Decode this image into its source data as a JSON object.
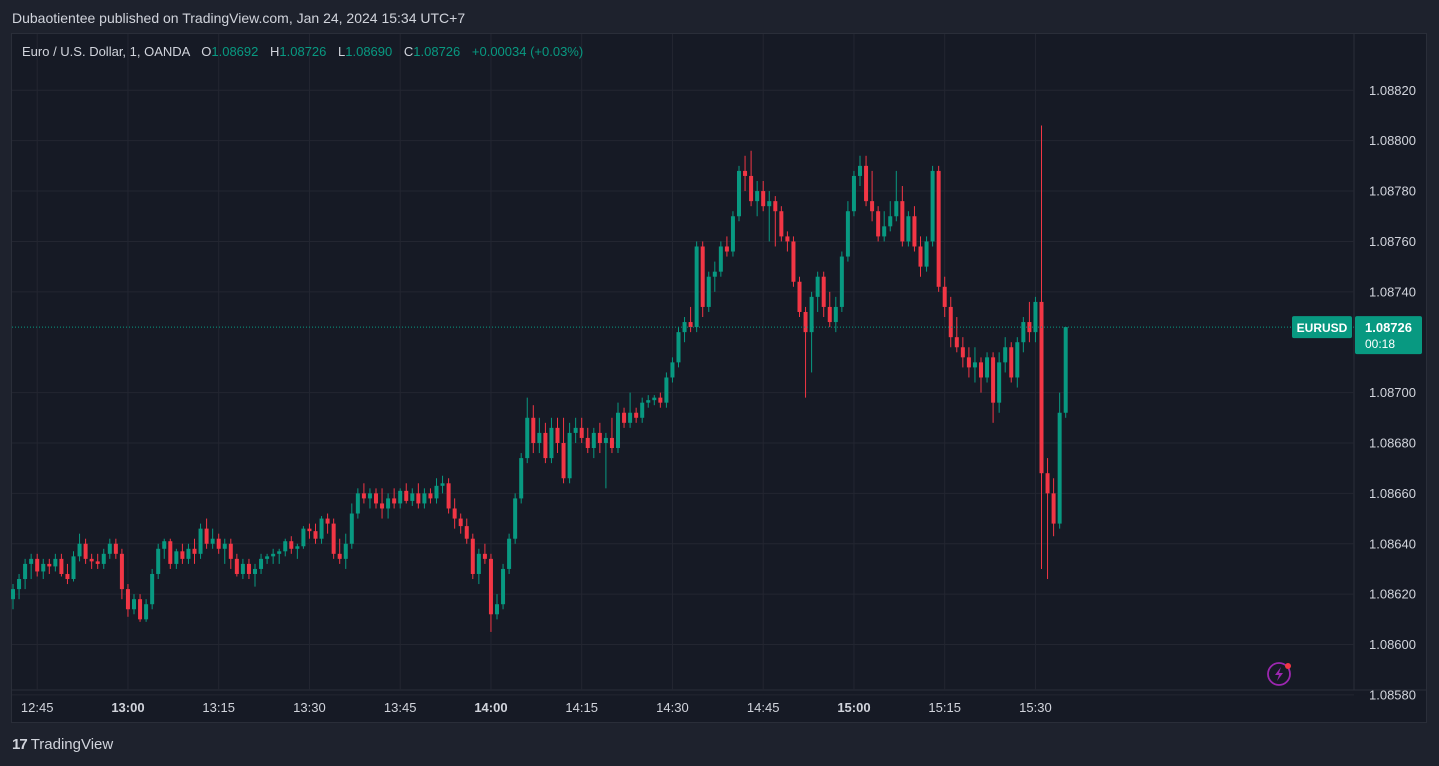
{
  "header": {
    "publisher_line": "Dubaotientee published on TradingView.com, Jan 24, 2024 15:34 UTC+7"
  },
  "legend": {
    "symbol": "Euro / U.S. Dollar, 1, OANDA",
    "open_label": "O",
    "open": "1.08692",
    "high_label": "H",
    "high": "1.08726",
    "low_label": "L",
    "low": "1.08690",
    "close_label": "C",
    "close": "1.08726",
    "change": "+0.00034 (+0.03%)"
  },
  "price_tag": {
    "symbol": "EURUSD",
    "price": "1.08726",
    "countdown": "00:18"
  },
  "footer": {
    "brand_mark": "17",
    "brand": "TradingView"
  },
  "colors": {
    "up": "#089981",
    "down": "#f23645",
    "background": "#161a25",
    "grid": "#232631",
    "text": "#d1d4dc"
  },
  "icons": {
    "alert": "lightning-bolt-icon"
  },
  "chart_data": {
    "type": "candlestick",
    "bar_interval_minutes": 1,
    "x_ticks": [
      {
        "label": "12:45",
        "index": 4,
        "bold": false
      },
      {
        "label": "13:00",
        "index": 19,
        "bold": true
      },
      {
        "label": "13:15",
        "index": 34,
        "bold": false
      },
      {
        "label": "13:30",
        "index": 49,
        "bold": false
      },
      {
        "label": "13:45",
        "index": 64,
        "bold": false
      },
      {
        "label": "14:00",
        "index": 79,
        "bold": true
      },
      {
        "label": "14:15",
        "index": 94,
        "bold": false
      },
      {
        "label": "14:30",
        "index": 109,
        "bold": false
      },
      {
        "label": "14:45",
        "index": 124,
        "bold": false
      },
      {
        "label": "15:00",
        "index": 139,
        "bold": true
      },
      {
        "label": "15:15",
        "index": 154,
        "bold": false
      },
      {
        "label": "15:30",
        "index": 169,
        "bold": false
      }
    ],
    "y_ticks": [
      "1.08820",
      "1.08800",
      "1.08780",
      "1.08760",
      "1.08740",
      "1.08700",
      "1.08680",
      "1.08660",
      "1.08640",
      "1.08620",
      "1.08600",
      "1.08580"
    ],
    "ylim": [
      1.08575,
      1.08835
    ],
    "last_price": 1.08726,
    "grid": true,
    "ohlc": [
      [
        1.08618,
        1.08624,
        1.08614,
        1.08622
      ],
      [
        1.08622,
        1.08628,
        1.08618,
        1.08626
      ],
      [
        1.08626,
        1.08634,
        1.08622,
        1.08632
      ],
      [
        1.08632,
        1.08636,
        1.08626,
        1.08634
      ],
      [
        1.08634,
        1.08636,
        1.08627,
        1.08629
      ],
      [
        1.08629,
        1.08634,
        1.08626,
        1.08632
      ],
      [
        1.08632,
        1.08634,
        1.08628,
        1.08631
      ],
      [
        1.08631,
        1.08636,
        1.08629,
        1.08634
      ],
      [
        1.08634,
        1.08636,
        1.08627,
        1.08628
      ],
      [
        1.08628,
        1.08632,
        1.08624,
        1.08626
      ],
      [
        1.08626,
        1.08637,
        1.08625,
        1.08635
      ],
      [
        1.08635,
        1.08644,
        1.08633,
        1.0864
      ],
      [
        1.0864,
        1.08642,
        1.08632,
        1.08634
      ],
      [
        1.08634,
        1.08636,
        1.0863,
        1.08633
      ],
      [
        1.08633,
        1.08636,
        1.0863,
        1.08632
      ],
      [
        1.08632,
        1.08638,
        1.0863,
        1.08636
      ],
      [
        1.08636,
        1.08642,
        1.08634,
        1.0864
      ],
      [
        1.0864,
        1.08642,
        1.08634,
        1.08636
      ],
      [
        1.08636,
        1.08638,
        1.08618,
        1.08622
      ],
      [
        1.08622,
        1.08624,
        1.08611,
        1.08614
      ],
      [
        1.08614,
        1.0862,
        1.08612,
        1.08618
      ],
      [
        1.08618,
        1.0862,
        1.08609,
        1.0861
      ],
      [
        1.0861,
        1.08618,
        1.08609,
        1.08616
      ],
      [
        1.08616,
        1.0863,
        1.08614,
        1.08628
      ],
      [
        1.08628,
        1.0864,
        1.08626,
        1.08638
      ],
      [
        1.08638,
        1.08642,
        1.08634,
        1.08641
      ],
      [
        1.08641,
        1.08642,
        1.0863,
        1.08632
      ],
      [
        1.08632,
        1.08638,
        1.0863,
        1.08637
      ],
      [
        1.08637,
        1.0864,
        1.08632,
        1.08634
      ],
      [
        1.08634,
        1.0864,
        1.08632,
        1.08638
      ],
      [
        1.08638,
        1.08642,
        1.08632,
        1.08636
      ],
      [
        1.08636,
        1.08648,
        1.08634,
        1.08646
      ],
      [
        1.08646,
        1.0865,
        1.08638,
        1.0864
      ],
      [
        1.0864,
        1.08646,
        1.08638,
        1.08642
      ],
      [
        1.08642,
        1.08644,
        1.08636,
        1.08638
      ],
      [
        1.08638,
        1.08642,
        1.08632,
        1.0864
      ],
      [
        1.0864,
        1.08642,
        1.0863,
        1.08634
      ],
      [
        1.08634,
        1.08636,
        1.08627,
        1.08628
      ],
      [
        1.08628,
        1.08634,
        1.08626,
        1.08632
      ],
      [
        1.08632,
        1.08634,
        1.08626,
        1.08628
      ],
      [
        1.08628,
        1.08632,
        1.08623,
        1.0863
      ],
      [
        1.0863,
        1.08636,
        1.08628,
        1.08634
      ],
      [
        1.08634,
        1.08636,
        1.08632,
        1.08635
      ],
      [
        1.08635,
        1.08638,
        1.08632,
        1.08636
      ],
      [
        1.08636,
        1.08638,
        1.08632,
        1.08637
      ],
      [
        1.08637,
        1.08642,
        1.08635,
        1.08641
      ],
      [
        1.08641,
        1.08643,
        1.08636,
        1.08638
      ],
      [
        1.08638,
        1.0864,
        1.08634,
        1.08639
      ],
      [
        1.08639,
        1.08647,
        1.08638,
        1.08646
      ],
      [
        1.08646,
        1.08648,
        1.08642,
        1.08645
      ],
      [
        1.08645,
        1.08648,
        1.0864,
        1.08642
      ],
      [
        1.08642,
        1.08651,
        1.0864,
        1.0865
      ],
      [
        1.0865,
        1.08652,
        1.08644,
        1.08648
      ],
      [
        1.08648,
        1.0865,
        1.08634,
        1.08636
      ],
      [
        1.08636,
        1.08642,
        1.08632,
        1.08634
      ],
      [
        1.08634,
        1.08644,
        1.0863,
        1.0864
      ],
      [
        1.0864,
        1.08656,
        1.08638,
        1.08652
      ],
      [
        1.08652,
        1.08662,
        1.0865,
        1.0866
      ],
      [
        1.0866,
        1.08664,
        1.08656,
        1.08658
      ],
      [
        1.08658,
        1.08662,
        1.08654,
        1.0866
      ],
      [
        1.0866,
        1.08662,
        1.08654,
        1.08656
      ],
      [
        1.08656,
        1.08662,
        1.0865,
        1.08654
      ],
      [
        1.08654,
        1.0866,
        1.0865,
        1.08658
      ],
      [
        1.08658,
        1.08662,
        1.08654,
        1.08656
      ],
      [
        1.08656,
        1.08662,
        1.08654,
        1.08661
      ],
      [
        1.08661,
        1.08664,
        1.08656,
        1.08657
      ],
      [
        1.08657,
        1.08662,
        1.08655,
        1.0866
      ],
      [
        1.0866,
        1.08664,
        1.08654,
        1.08656
      ],
      [
        1.08656,
        1.08662,
        1.08654,
        1.0866
      ],
      [
        1.0866,
        1.08662,
        1.08656,
        1.08658
      ],
      [
        1.08658,
        1.08666,
        1.08656,
        1.08663
      ],
      [
        1.08663,
        1.08667,
        1.0866,
        1.08664
      ],
      [
        1.08664,
        1.08666,
        1.08652,
        1.08654
      ],
      [
        1.08654,
        1.08658,
        1.08646,
        1.0865
      ],
      [
        1.0865,
        1.08652,
        1.08644,
        1.08647
      ],
      [
        1.08647,
        1.0865,
        1.0864,
        1.08642
      ],
      [
        1.08642,
        1.08644,
        1.08626,
        1.08628
      ],
      [
        1.08628,
        1.08638,
        1.08624,
        1.08636
      ],
      [
        1.08636,
        1.0864,
        1.08632,
        1.08634
      ],
      [
        1.08634,
        1.08636,
        1.08605,
        1.08612
      ],
      [
        1.08612,
        1.0862,
        1.0861,
        1.08616
      ],
      [
        1.08616,
        1.08632,
        1.08614,
        1.0863
      ],
      [
        1.0863,
        1.08644,
        1.08628,
        1.08642
      ],
      [
        1.08642,
        1.0866,
        1.0864,
        1.08658
      ],
      [
        1.08658,
        1.08676,
        1.08656,
        1.08674
      ],
      [
        1.08674,
        1.08698,
        1.08672,
        1.0869
      ],
      [
        1.0869,
        1.08695,
        1.08676,
        1.0868
      ],
      [
        1.0868,
        1.0869,
        1.08676,
        1.08684
      ],
      [
        1.08684,
        1.08688,
        1.08672,
        1.08674
      ],
      [
        1.08674,
        1.0869,
        1.08672,
        1.08686
      ],
      [
        1.08686,
        1.0869,
        1.08676,
        1.0868
      ],
      [
        1.0868,
        1.0869,
        1.08664,
        1.08666
      ],
      [
        1.08666,
        1.08688,
        1.08664,
        1.08684
      ],
      [
        1.08684,
        1.0869,
        1.0868,
        1.08686
      ],
      [
        1.08686,
        1.0869,
        1.0868,
        1.08682
      ],
      [
        1.08682,
        1.08686,
        1.08676,
        1.08678
      ],
      [
        1.08678,
        1.08686,
        1.08674,
        1.08684
      ],
      [
        1.08684,
        1.08688,
        1.08676,
        1.0868
      ],
      [
        1.0868,
        1.08684,
        1.08662,
        1.08682
      ],
      [
        1.08682,
        1.0869,
        1.08676,
        1.08678
      ],
      [
        1.08678,
        1.08696,
        1.08676,
        1.08692
      ],
      [
        1.08692,
        1.08694,
        1.08686,
        1.08688
      ],
      [
        1.08688,
        1.087,
        1.08686,
        1.08692
      ],
      [
        1.08692,
        1.08694,
        1.08688,
        1.0869
      ],
      [
        1.0869,
        1.08698,
        1.08688,
        1.08696
      ],
      [
        1.08696,
        1.08699,
        1.08694,
        1.08697
      ],
      [
        1.08697,
        1.08699,
        1.08695,
        1.08698
      ],
      [
        1.08698,
        1.087,
        1.08694,
        1.08696
      ],
      [
        1.08696,
        1.08708,
        1.08694,
        1.08706
      ],
      [
        1.08706,
        1.08714,
        1.08704,
        1.08712
      ],
      [
        1.08712,
        1.08726,
        1.0871,
        1.08724
      ],
      [
        1.08724,
        1.0873,
        1.0872,
        1.08728
      ],
      [
        1.08728,
        1.08734,
        1.08724,
        1.08726
      ],
      [
        1.08726,
        1.0876,
        1.08724,
        1.08758
      ],
      [
        1.08758,
        1.0876,
        1.0873,
        1.08734
      ],
      [
        1.08734,
        1.08748,
        1.08732,
        1.08746
      ],
      [
        1.08746,
        1.08752,
        1.0874,
        1.08748
      ],
      [
        1.08748,
        1.0876,
        1.08746,
        1.08758
      ],
      [
        1.08758,
        1.08762,
        1.08754,
        1.08756
      ],
      [
        1.08756,
        1.08772,
        1.08754,
        1.0877
      ],
      [
        1.0877,
        1.0879,
        1.08768,
        1.08788
      ],
      [
        1.08788,
        1.08794,
        1.0878,
        1.08786
      ],
      [
        1.08786,
        1.08796,
        1.08774,
        1.08776
      ],
      [
        1.08776,
        1.08784,
        1.0877,
        1.0878
      ],
      [
        1.0878,
        1.08784,
        1.08772,
        1.08774
      ],
      [
        1.08774,
        1.0878,
        1.0876,
        1.08776
      ],
      [
        1.08776,
        1.08778,
        1.08758,
        1.08772
      ],
      [
        1.08772,
        1.08774,
        1.0876,
        1.08762
      ],
      [
        1.08762,
        1.08764,
        1.08756,
        1.0876
      ],
      [
        1.0876,
        1.08762,
        1.08742,
        1.08744
      ],
      [
        1.08744,
        1.08746,
        1.0873,
        1.08732
      ],
      [
        1.08732,
        1.08734,
        1.08698,
        1.08724
      ],
      [
        1.08724,
        1.0874,
        1.08708,
        1.08738
      ],
      [
        1.08738,
        1.08748,
        1.08732,
        1.08746
      ],
      [
        1.08746,
        1.08748,
        1.0873,
        1.08734
      ],
      [
        1.08734,
        1.0874,
        1.08726,
        1.08728
      ],
      [
        1.08728,
        1.08738,
        1.08724,
        1.08734
      ],
      [
        1.08734,
        1.08756,
        1.08732,
        1.08754
      ],
      [
        1.08754,
        1.08776,
        1.08752,
        1.08772
      ],
      [
        1.08772,
        1.08788,
        1.0877,
        1.08786
      ],
      [
        1.08786,
        1.08794,
        1.08782,
        1.0879
      ],
      [
        1.0879,
        1.08794,
        1.08774,
        1.08776
      ],
      [
        1.08776,
        1.08788,
        1.08768,
        1.08772
      ],
      [
        1.08772,
        1.08774,
        1.0876,
        1.08762
      ],
      [
        1.08762,
        1.08772,
        1.0876,
        1.08766
      ],
      [
        1.08766,
        1.08776,
        1.08764,
        1.0877
      ],
      [
        1.0877,
        1.08788,
        1.08768,
        1.08776
      ],
      [
        1.08776,
        1.08782,
        1.08758,
        1.0876
      ],
      [
        1.0876,
        1.08772,
        1.08758,
        1.0877
      ],
      [
        1.0877,
        1.08774,
        1.08756,
        1.08758
      ],
      [
        1.08758,
        1.08762,
        1.08746,
        1.0875
      ],
      [
        1.0875,
        1.08762,
        1.08748,
        1.0876
      ],
      [
        1.0876,
        1.0879,
        1.08758,
        1.08788
      ],
      [
        1.08788,
        1.0879,
        1.0874,
        1.08742
      ],
      [
        1.08742,
        1.08746,
        1.0873,
        1.08734
      ],
      [
        1.08734,
        1.08738,
        1.08718,
        1.08722
      ],
      [
        1.08722,
        1.0873,
        1.08716,
        1.08718
      ],
      [
        1.08718,
        1.08722,
        1.0871,
        1.08714
      ],
      [
        1.08714,
        1.08718,
        1.08706,
        1.0871
      ],
      [
        1.0871,
        1.08718,
        1.08704,
        1.08712
      ],
      [
        1.08712,
        1.08714,
        1.087,
        1.08706
      ],
      [
        1.08706,
        1.08716,
        1.08704,
        1.08714
      ],
      [
        1.08714,
        1.08716,
        1.08688,
        1.08696
      ],
      [
        1.08696,
        1.08716,
        1.08692,
        1.08712
      ],
      [
        1.08712,
        1.08722,
        1.08708,
        1.08718
      ],
      [
        1.08718,
        1.0872,
        1.08704,
        1.08706
      ],
      [
        1.08706,
        1.08722,
        1.08702,
        1.0872
      ],
      [
        1.0872,
        1.0873,
        1.08716,
        1.08728
      ],
      [
        1.08728,
        1.08736,
        1.0872,
        1.08724
      ],
      [
        1.08724,
        1.08738,
        1.0872,
        1.08736
      ],
      [
        1.08736,
        1.08806,
        1.0863,
        1.08668
      ],
      [
        1.08668,
        1.08674,
        1.08626,
        1.0866
      ],
      [
        1.0866,
        1.08666,
        1.08643,
        1.08648
      ],
      [
        1.08648,
        1.087,
        1.08646,
        1.08692
      ],
      [
        1.08692,
        1.08726,
        1.0869,
        1.08726
      ]
    ]
  }
}
